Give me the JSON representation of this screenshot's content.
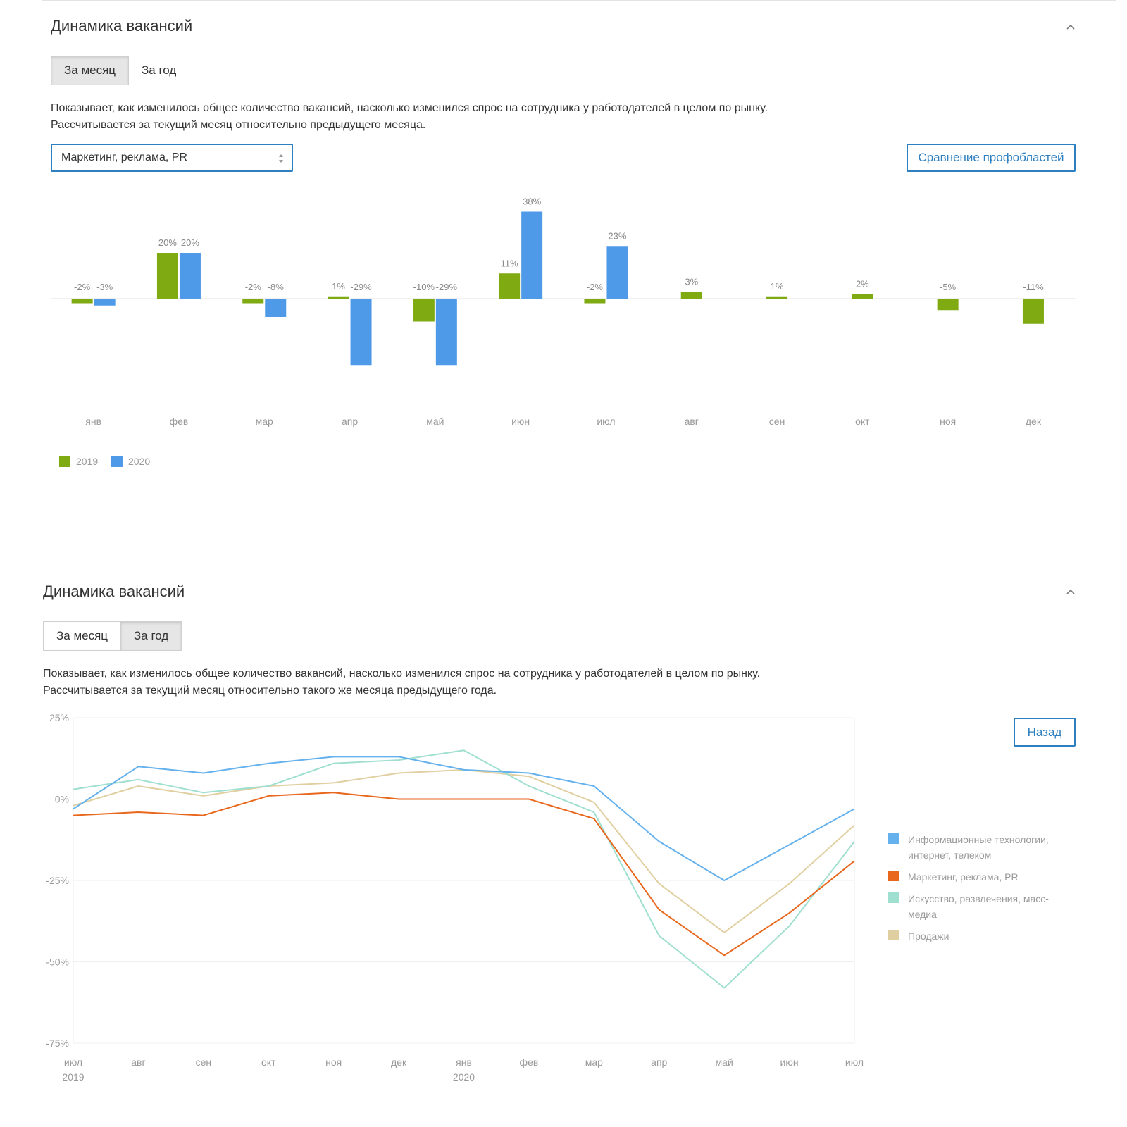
{
  "panel1": {
    "title": "Динамика вакансий",
    "tabs": [
      {
        "label": "За месяц",
        "active": true
      },
      {
        "label": "За год",
        "active": false
      }
    ],
    "description_line1": "Показывает, как изменилось общее количество вакансий, насколько изменился спрос на сотрудника у работодателей в целом по рынку.",
    "description_line2": "Рассчитывается за текущий месяц относительно предыдущего месяца.",
    "select_value": "Маркетинг, реклама, PR",
    "compare_button": "Сравнение профобластей"
  },
  "panel2": {
    "title": "Динамика вакансий",
    "tabs": [
      {
        "label": "За месяц",
        "active": false
      },
      {
        "label": "За год",
        "active": true
      }
    ],
    "description_line1": "Показывает, как изменилось общее количество вакансий, насколько изменился спрос на сотрудника у работодателей в целом по рынку.",
    "description_line2": "Рассчитывается за текущий месяц относительно такого же месяца предыдущего года.",
    "back_button": "Назад"
  },
  "chart_data": [
    {
      "type": "bar",
      "categories": [
        "янв",
        "фев",
        "мар",
        "апр",
        "май",
        "июн",
        "июл",
        "авг",
        "сен",
        "окт",
        "ноя",
        "дек"
      ],
      "series": [
        {
          "name": "2019",
          "color": "#7faa12",
          "values": [
            -2,
            20,
            -2,
            1,
            -10,
            11,
            -2,
            3,
            1,
            2,
            -5,
            -11
          ],
          "labels": [
            "-2%",
            "20%",
            "-2%",
            "1%",
            "-10%",
            "11%",
            "-2%",
            "3%",
            "1%",
            "2%",
            "-5%",
            "-11%"
          ]
        },
        {
          "name": "2020",
          "color": "#4f9ae8",
          "values": [
            -3,
            20,
            -8,
            -29,
            -29,
            38,
            23,
            null,
            null,
            null,
            null,
            null
          ],
          "labels": [
            "-3%",
            "20%",
            "-8%",
            "-29%",
            "-29%",
            "38%",
            "23%",
            "",
            "",
            "",
            "",
            ""
          ]
        }
      ],
      "legend": "bottom-left",
      "grid": false
    },
    {
      "type": "line",
      "x": [
        "июл",
        "авг",
        "сен",
        "окт",
        "ноя",
        "дек",
        "янв",
        "фев",
        "мар",
        "апр",
        "май",
        "июн",
        "июл"
      ],
      "x_year_labels": [
        {
          "index": 0,
          "label": "2019"
        },
        {
          "index": 6,
          "label": "2020"
        }
      ],
      "ylim": [
        -75,
        25
      ],
      "y_ticks": [
        25,
        0,
        -25,
        -50,
        -75
      ],
      "y_tick_labels": [
        "25%",
        "0%",
        "-25%",
        "-50%",
        "-75%"
      ],
      "grid": true,
      "legend": "right",
      "series": [
        {
          "name": "Информационные технологии, интернет, телеком",
          "color": "#64b1ed",
          "values": [
            -3,
            10,
            8,
            11,
            13,
            13,
            9,
            8,
            4,
            -13,
            -25,
            -14,
            -3
          ]
        },
        {
          "name": "Маркетинг, реклама, PR",
          "color": "#e8671c",
          "values": [
            -5,
            -4,
            -5,
            1,
            2,
            0,
            0,
            0,
            -6,
            -34,
            -48,
            -35,
            -19
          ]
        },
        {
          "name": "Искусство, развлечения, масс-медиа",
          "color": "#9fdfcf",
          "values": [
            3,
            6,
            2,
            4,
            11,
            12,
            15,
            4,
            -4,
            -42,
            -58,
            -39,
            -13
          ]
        },
        {
          "name": "Продажи",
          "color": "#e0cfa0",
          "values": [
            -2,
            4,
            1,
            4,
            5,
            8,
            9,
            7,
            -1,
            -26,
            -41,
            -26,
            -8
          ]
        }
      ]
    }
  ]
}
